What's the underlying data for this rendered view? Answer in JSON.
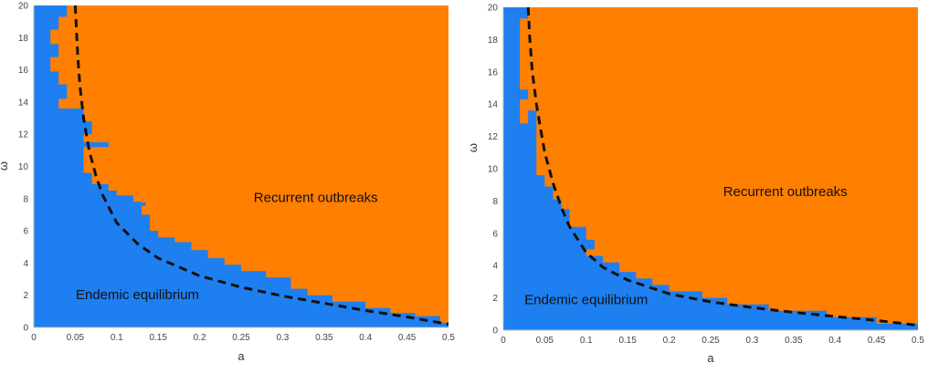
{
  "colors": {
    "blue": "#1e7ff0",
    "orange": "#ff7f00",
    "boundary": "#111111",
    "axis_text": "#444444"
  },
  "chart_data": [
    {
      "type": "heatmap",
      "xlabel": "a",
      "ylabel": "ω",
      "xlim": [
        0,
        0.5
      ],
      "ylim": [
        0,
        20
      ],
      "xticks": [
        "0",
        "0.05",
        "0.1",
        "0.15",
        "0.2",
        "0.25",
        "0.3",
        "0.35",
        "0.4",
        "0.45",
        "0.5"
      ],
      "yticks": [
        "0",
        "2",
        "4",
        "6",
        "8",
        "10",
        "12",
        "14",
        "16",
        "18",
        "20"
      ],
      "grid": false,
      "region_labels": [
        {
          "text": "Recurrent outbreaks",
          "class": "orange",
          "a": 0.34,
          "omega": 7.8
        },
        {
          "text": "Endemic equilibrium",
          "class": "blue",
          "a": 0.125,
          "omega": 1.75
        }
      ],
      "blue_region_boundary": [
        [
          0.0,
          20.0
        ],
        [
          0.04,
          20.0
        ],
        [
          0.04,
          19.3
        ],
        [
          0.03,
          19.3
        ],
        [
          0.03,
          18.5
        ],
        [
          0.02,
          18.5
        ],
        [
          0.02,
          17.6
        ],
        [
          0.03,
          17.6
        ],
        [
          0.03,
          16.8
        ],
        [
          0.02,
          16.8
        ],
        [
          0.02,
          15.9
        ],
        [
          0.03,
          15.9
        ],
        [
          0.03,
          15.1
        ],
        [
          0.04,
          15.1
        ],
        [
          0.04,
          14.2
        ],
        [
          0.03,
          14.2
        ],
        [
          0.03,
          13.6
        ],
        [
          0.06,
          13.6
        ],
        [
          0.06,
          13.2
        ],
        [
          0.06,
          12.8
        ],
        [
          0.07,
          12.8
        ],
        [
          0.07,
          12.0
        ],
        [
          0.06,
          12.0
        ],
        [
          0.06,
          11.5
        ],
        [
          0.09,
          11.5
        ],
        [
          0.09,
          11.2
        ],
        [
          0.06,
          11.2
        ],
        [
          0.06,
          9.6
        ],
        [
          0.07,
          9.6
        ],
        [
          0.07,
          8.9
        ],
        [
          0.09,
          8.9
        ],
        [
          0.09,
          8.5
        ],
        [
          0.1,
          8.5
        ],
        [
          0.1,
          8.2
        ],
        [
          0.12,
          8.2
        ],
        [
          0.12,
          7.8
        ],
        [
          0.13,
          7.8
        ],
        [
          0.13,
          7.5
        ],
        [
          0.13,
          7.0
        ],
        [
          0.14,
          7.0
        ],
        [
          0.14,
          6.6
        ],
        [
          0.14,
          6.0
        ],
        [
          0.15,
          6.0
        ],
        [
          0.15,
          5.6
        ],
        [
          0.17,
          5.6
        ],
        [
          0.17,
          5.3
        ],
        [
          0.19,
          5.3
        ],
        [
          0.19,
          4.8
        ],
        [
          0.21,
          4.8
        ],
        [
          0.21,
          4.3
        ],
        [
          0.23,
          4.3
        ],
        [
          0.23,
          3.9
        ],
        [
          0.25,
          3.9
        ],
        [
          0.25,
          3.5
        ],
        [
          0.28,
          3.5
        ],
        [
          0.28,
          3.1
        ],
        [
          0.31,
          3.1
        ],
        [
          0.31,
          2.4
        ],
        [
          0.33,
          2.4
        ],
        [
          0.33,
          2.0
        ],
        [
          0.36,
          2.0
        ],
        [
          0.36,
          1.6
        ],
        [
          0.4,
          1.6
        ],
        [
          0.4,
          1.2
        ],
        [
          0.43,
          1.2
        ],
        [
          0.43,
          0.9
        ],
        [
          0.46,
          0.9
        ],
        [
          0.46,
          0.7
        ],
        [
          0.49,
          0.7
        ],
        [
          0.49,
          0.3
        ],
        [
          0.5,
          0.3
        ],
        [
          0.5,
          0.0
        ],
        [
          0.0,
          0.0
        ]
      ],
      "blue_patches": [
        [
          [
            0.13,
            7.75
          ],
          [
            0.135,
            7.75
          ],
          [
            0.135,
            7.55
          ],
          [
            0.13,
            7.55
          ]
        ]
      ],
      "orange_patches": [
        [
          [
            0.14,
            6.6
          ],
          [
            0.15,
            6.6
          ],
          [
            0.15,
            6.3
          ],
          [
            0.14,
            6.3
          ]
        ]
      ],
      "dashed_curve": [
        [
          0.05,
          20
        ],
        [
          0.0529,
          17
        ],
        [
          0.0556,
          15
        ],
        [
          0.06,
          13
        ],
        [
          0.0667,
          11
        ],
        [
          0.075,
          9.4
        ],
        [
          0.0833,
          8.2
        ],
        [
          0.1,
          6.5
        ],
        [
          0.125,
          5.2
        ],
        [
          0.15,
          4.3
        ],
        [
          0.2,
          3.2
        ],
        [
          0.25,
          2.5
        ],
        [
          0.3,
          1.95
        ],
        [
          0.35,
          1.5
        ],
        [
          0.4,
          1.05
        ],
        [
          0.45,
          0.65
        ],
        [
          0.5,
          0.2
        ]
      ]
    },
    {
      "type": "heatmap",
      "xlabel": "a",
      "ylabel": "ω",
      "xlim": [
        0,
        0.5
      ],
      "ylim": [
        0,
        20
      ],
      "xticks": [
        "0",
        "0.05",
        "0.1",
        "0.15",
        "0.2",
        "0.25",
        "0.3",
        "0.35",
        "0.4",
        "0.45",
        "0.5"
      ],
      "yticks": [
        "0",
        "2",
        "4",
        "6",
        "8",
        "10",
        "12",
        "14",
        "16",
        "18",
        "20"
      ],
      "grid": false,
      "region_labels": [
        {
          "text": "Recurrent outbreaks",
          "class": "orange",
          "a": 0.34,
          "omega": 8.3
        },
        {
          "text": "Endemic equilibrium",
          "class": "blue",
          "a": 0.1,
          "omega": 1.6
        }
      ],
      "blue_region_boundary": [
        [
          0.0,
          20.0
        ],
        [
          0.03,
          20.0
        ],
        [
          0.03,
          19.3
        ],
        [
          0.02,
          19.3
        ],
        [
          0.02,
          18.3
        ],
        [
          0.02,
          14.9
        ],
        [
          0.03,
          14.9
        ],
        [
          0.03,
          14.3
        ],
        [
          0.02,
          14.3
        ],
        [
          0.02,
          12.8
        ],
        [
          0.03,
          12.8
        ],
        [
          0.03,
          13.6
        ],
        [
          0.04,
          13.6
        ],
        [
          0.04,
          10.2
        ],
        [
          0.04,
          9.6
        ],
        [
          0.05,
          9.6
        ],
        [
          0.05,
          8.9
        ],
        [
          0.06,
          8.9
        ],
        [
          0.06,
          8.1
        ],
        [
          0.07,
          8.1
        ],
        [
          0.07,
          7.5
        ],
        [
          0.08,
          7.5
        ],
        [
          0.08,
          7.0
        ],
        [
          0.08,
          6.4
        ],
        [
          0.1,
          6.4
        ],
        [
          0.1,
          5.6
        ],
        [
          0.11,
          5.6
        ],
        [
          0.11,
          5.0
        ],
        [
          0.1,
          5.0
        ],
        [
          0.1,
          4.6
        ],
        [
          0.12,
          4.6
        ],
        [
          0.12,
          4.2
        ],
        [
          0.14,
          4.2
        ],
        [
          0.14,
          3.6
        ],
        [
          0.16,
          3.6
        ],
        [
          0.16,
          3.2
        ],
        [
          0.18,
          3.2
        ],
        [
          0.18,
          2.8
        ],
        [
          0.2,
          2.8
        ],
        [
          0.2,
          2.4
        ],
        [
          0.24,
          2.4
        ],
        [
          0.24,
          2.0
        ],
        [
          0.27,
          2.0
        ],
        [
          0.27,
          1.6
        ],
        [
          0.32,
          1.6
        ],
        [
          0.32,
          1.2
        ],
        [
          0.39,
          1.2
        ],
        [
          0.39,
          0.8
        ],
        [
          0.45,
          0.8
        ],
        [
          0.45,
          0.4
        ],
        [
          0.5,
          0.4
        ],
        [
          0.5,
          0.0
        ],
        [
          0.0,
          0.0
        ]
      ],
      "blue_patches": [],
      "orange_patches": [],
      "dashed_curve": [
        [
          0.03,
          20
        ],
        [
          0.032,
          18
        ],
        [
          0.035,
          16
        ],
        [
          0.04,
          14
        ],
        [
          0.0452,
          12.4
        ],
        [
          0.05,
          11
        ],
        [
          0.06,
          9.1
        ],
        [
          0.07,
          7.6
        ],
        [
          0.08,
          6.4
        ],
        [
          0.1,
          4.8
        ],
        [
          0.12,
          3.9
        ],
        [
          0.15,
          3.1
        ],
        [
          0.2,
          2.25
        ],
        [
          0.25,
          1.75
        ],
        [
          0.3,
          1.4
        ],
        [
          0.35,
          1.1
        ],
        [
          0.4,
          0.85
        ],
        [
          0.45,
          0.6
        ],
        [
          0.5,
          0.3
        ]
      ]
    }
  ]
}
